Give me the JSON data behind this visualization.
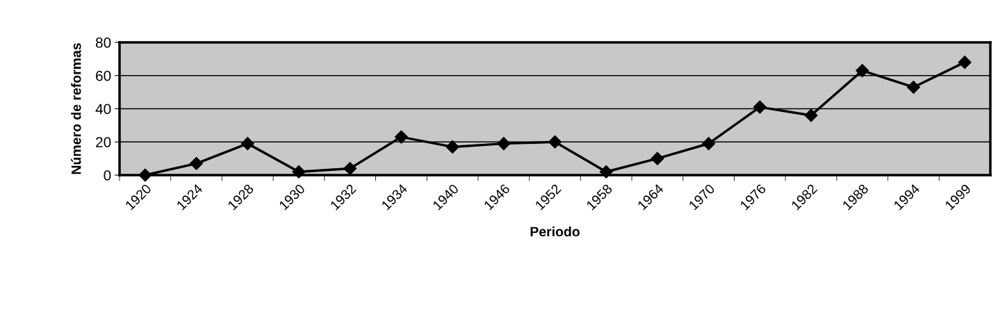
{
  "chart_data": {
    "type": "line",
    "xlabel": "Periodo",
    "ylabel": "Número de reformas",
    "categories": [
      "1920",
      "1924",
      "1928",
      "1930",
      "1932",
      "1934",
      "1940",
      "1946",
      "1952",
      "1958",
      "1964",
      "1970",
      "1976",
      "1982",
      "1988",
      "1994",
      "1999"
    ],
    "series": [
      {
        "color": "#000000",
        "values": [
          0,
          7,
          19,
          2,
          4,
          23,
          17,
          19,
          20,
          2,
          10,
          19,
          41,
          36,
          63,
          53,
          68
        ]
      }
    ],
    "ylim": [
      0,
      80
    ],
    "yticks": [
      0,
      20,
      40,
      60,
      80
    ],
    "grid": "y",
    "legend": false,
    "marker": "diamond",
    "line_style": "solid"
  }
}
